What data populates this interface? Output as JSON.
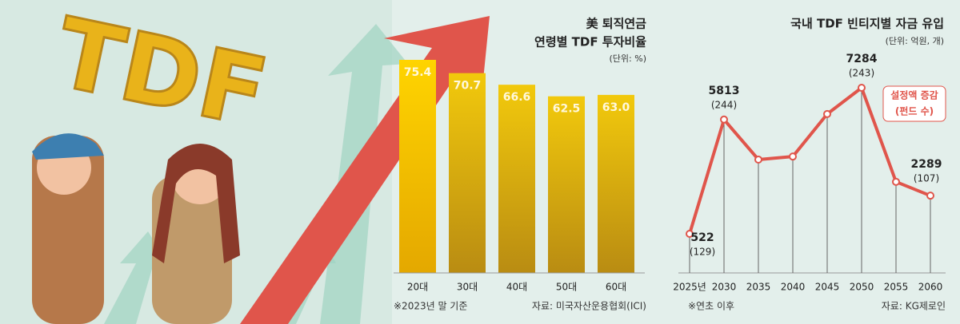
{
  "illustration": {
    "text": "TDF"
  },
  "chart_data": [
    {
      "type": "bar",
      "title": [
        "美 퇴직연금",
        "연령별 TDF 투자비율"
      ],
      "unit": "(단위: %)",
      "categories": [
        "20대",
        "30대",
        "40대",
        "50대",
        "60대"
      ],
      "values": [
        75.4,
        70.7,
        66.6,
        62.5,
        63.0
      ],
      "value_labels": [
        "75.4",
        "70.7",
        "66.6",
        "62.5",
        "63.0"
      ],
      "color": "#d9aa0c",
      "note": "※2023년 말 기준",
      "source": "자료: 미국자산운용협회(ICI)"
    },
    {
      "type": "line",
      "title": "국내 TDF 빈티지별 자금 유입",
      "unit": "(단위: 억원, 개)",
      "categories": [
        "2025년",
        "2030",
        "2035",
        "2040",
        "2045",
        "2050",
        "2055",
        "2060"
      ],
      "values": [
        522,
        5813,
        3960,
        4100,
        6070,
        7284,
        2930,
        2289
      ],
      "value_labels": [
        "522",
        "5813",
        null,
        null,
        null,
        "7284",
        null,
        "2289"
      ],
      "count_labels": [
        "(129)",
        "(244)",
        null,
        null,
        null,
        "(243)",
        null,
        "(107)"
      ],
      "color": "#e0554b",
      "annotation": [
        "설정액 증감",
        "(펀드 수)"
      ],
      "note": "※연초 이후",
      "source": "자료: KG제로인"
    }
  ]
}
